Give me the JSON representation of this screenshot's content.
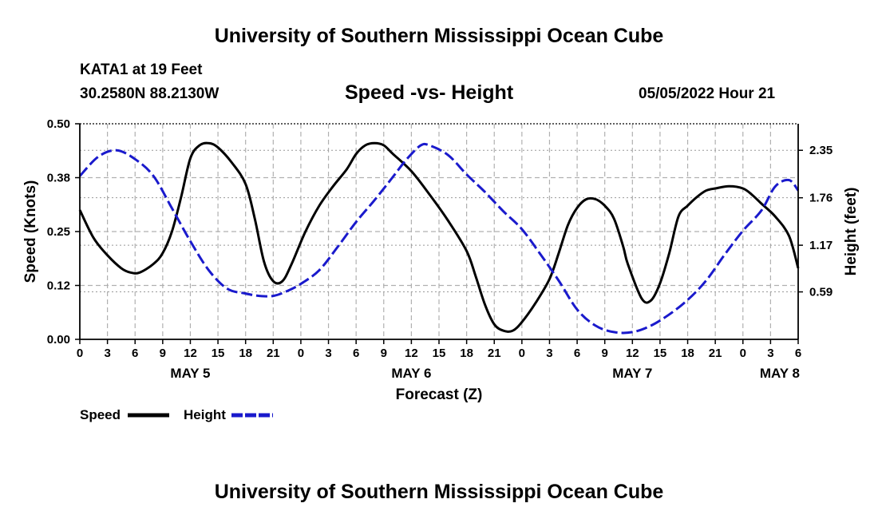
{
  "header": {
    "title": "University of Southern Mississippi Ocean Cube",
    "station": "KATA1 at 19 Feet",
    "coords": "30.2580N  88.2130W",
    "chart_title": "Speed -vs- Height",
    "datetime": "05/05/2022 Hour 21"
  },
  "footer": {
    "title": "University of Southern Mississippi Ocean Cube"
  },
  "colors": {
    "speed": "#000000",
    "height": "#1a1acc",
    "grid": "#b0b0b0"
  },
  "chart_data": {
    "type": "line",
    "title": "Speed -vs- Height",
    "xlabel": "Forecast (Z)",
    "ylabel": "Speed (Knots)",
    "y2label": "Height (feet)",
    "xlim": [
      0,
      78
    ],
    "ylim": [
      0,
      0.5
    ],
    "y2lim": [
      0.0,
      2.68
    ],
    "x_ticks": [
      0,
      3,
      6,
      9,
      12,
      15,
      18,
      21,
      24,
      27,
      30,
      33,
      36,
      39,
      42,
      45,
      48,
      51,
      54,
      57,
      60,
      63,
      66,
      69,
      72,
      75,
      78
    ],
    "x_tick_labels": [
      "0",
      "3",
      "6",
      "9",
      "12",
      "15",
      "18",
      "21",
      "0",
      "3",
      "6",
      "9",
      "12",
      "15",
      "18",
      "21",
      "0",
      "3",
      "6",
      "9",
      "12",
      "15",
      "18",
      "21",
      "0",
      "3",
      "6"
    ],
    "y_ticks": [
      0,
      0.125,
      0.25,
      0.375,
      0.5
    ],
    "y_tick_labels": [
      "0.00",
      "0.12",
      "0.25",
      "0.38",
      "0.50"
    ],
    "y2_ticks": [
      0.59,
      1.17,
      1.76,
      2.35
    ],
    "y2_tick_labels": [
      "0.59",
      "1.17",
      "1.76",
      "2.35"
    ],
    "day_labels": [
      {
        "label": "MAY 5",
        "x": 12
      },
      {
        "label": "MAY 6",
        "x": 36
      },
      {
        "label": "MAY 7",
        "x": 60
      },
      {
        "label": "MAY 8",
        "x": 76
      }
    ],
    "series": [
      {
        "name": "Speed",
        "axis": "left",
        "style": "solid",
        "x": [
          0,
          1.5,
          3,
          4.5,
          5.5,
          6.5,
          8,
          9,
          10,
          11,
          12,
          13,
          14,
          15,
          16.5,
          18,
          19,
          20,
          21,
          22,
          23,
          24.5,
          26,
          27.5,
          29,
          30,
          31,
          32,
          33,
          34,
          36,
          38,
          40,
          42,
          43,
          44,
          45,
          46,
          47,
          48,
          49.5,
          51,
          52,
          53,
          54,
          55,
          56,
          57,
          58,
          59,
          59.5,
          61,
          62,
          63,
          64,
          65,
          66,
          67,
          68,
          69,
          70.5,
          72,
          73,
          74,
          75.5,
          77,
          78
        ],
        "values": [
          0.3,
          0.235,
          0.195,
          0.165,
          0.155,
          0.155,
          0.175,
          0.2,
          0.25,
          0.33,
          0.42,
          0.45,
          0.455,
          0.445,
          0.41,
          0.36,
          0.28,
          0.18,
          0.135,
          0.135,
          0.175,
          0.25,
          0.31,
          0.355,
          0.395,
          0.43,
          0.45,
          0.455,
          0.45,
          0.43,
          0.39,
          0.335,
          0.275,
          0.205,
          0.145,
          0.08,
          0.035,
          0.02,
          0.02,
          0.04,
          0.085,
          0.14,
          0.2,
          0.265,
          0.305,
          0.325,
          0.325,
          0.31,
          0.28,
          0.215,
          0.175,
          0.095,
          0.09,
          0.13,
          0.2,
          0.285,
          0.31,
          0.33,
          0.345,
          0.35,
          0.355,
          0.35,
          0.335,
          0.315,
          0.285,
          0.24,
          0.165
        ]
      },
      {
        "name": "Height",
        "axis": "right",
        "style": "dashed",
        "x": [
          0,
          2,
          4,
          6,
          8,
          10,
          12,
          14,
          16,
          18,
          19.5,
          21,
          22.5,
          24,
          26,
          28,
          30,
          32,
          34,
          35.5,
          37,
          38,
          40,
          42,
          44,
          46,
          48,
          50,
          52,
          54,
          56,
          58,
          60,
          62,
          64,
          66,
          68,
          70,
          72,
          74,
          75.5,
          77,
          78
        ],
        "values": [
          2.03,
          2.27,
          2.35,
          2.24,
          2.03,
          1.63,
          1.22,
          0.86,
          0.63,
          0.57,
          0.54,
          0.54,
          0.6,
          0.69,
          0.86,
          1.15,
          1.46,
          1.73,
          2.02,
          2.24,
          2.41,
          2.41,
          2.29,
          2.05,
          1.83,
          1.59,
          1.37,
          1.06,
          0.73,
          0.37,
          0.17,
          0.09,
          0.09,
          0.17,
          0.31,
          0.49,
          0.73,
          1.05,
          1.35,
          1.6,
          1.9,
          1.98,
          1.85
        ]
      }
    ]
  },
  "legend": [
    {
      "label": "Speed",
      "style": "solid"
    },
    {
      "label": "Height",
      "style": "dashed"
    }
  ]
}
